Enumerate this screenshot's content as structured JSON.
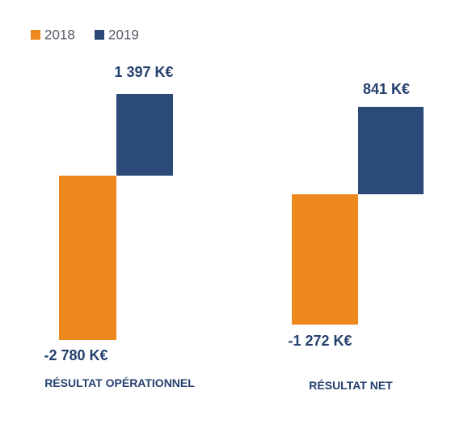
{
  "chart_data": {
    "type": "bar",
    "categories": [
      "RÉSULTAT OPÉRATIONNEL",
      "RÉSULTAT NET"
    ],
    "series": [
      {
        "name": "2018",
        "color": "#ec881d",
        "values": [
          -2780,
          -1272
        ],
        "labels": [
          "-2 780 K€",
          "-1 272 K€"
        ]
      },
      {
        "name": "2019",
        "color": "#2b4a78",
        "values": [
          1397,
          841
        ],
        "labels": [
          "1 397 K€",
          "841 K€"
        ]
      }
    ],
    "unit": "K€",
    "legend_position": "top-left",
    "grid": false
  }
}
